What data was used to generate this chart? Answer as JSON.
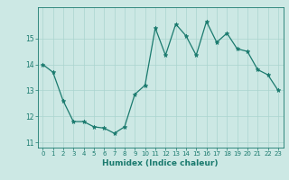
{
  "x": [
    0,
    1,
    2,
    3,
    4,
    5,
    6,
    7,
    8,
    9,
    10,
    11,
    12,
    13,
    14,
    15,
    16,
    17,
    18,
    19,
    20,
    21,
    22,
    23
  ],
  "y": [
    14.0,
    13.7,
    12.6,
    11.8,
    11.8,
    11.6,
    11.55,
    11.35,
    11.6,
    12.85,
    13.2,
    15.4,
    14.35,
    15.55,
    15.1,
    14.35,
    15.65,
    14.85,
    15.2,
    14.6,
    14.5,
    13.8,
    13.6,
    13.0
  ],
  "title": "",
  "xlabel": "Humidex (Indice chaleur)",
  "ylabel": "",
  "xlim": [
    -0.5,
    23.5
  ],
  "ylim": [
    10.8,
    16.2
  ],
  "yticks": [
    11,
    12,
    13,
    14,
    15
  ],
  "xticks": [
    0,
    1,
    2,
    3,
    4,
    5,
    6,
    7,
    8,
    9,
    10,
    11,
    12,
    13,
    14,
    15,
    16,
    17,
    18,
    19,
    20,
    21,
    22,
    23
  ],
  "line_color": "#1a7a6e",
  "marker_color": "#1a7a6e",
  "bg_color": "#cce8e4",
  "grid_color": "#aad4cf",
  "axis_color": "#1a7a6e",
  "tick_color": "#1a7a6e",
  "label_color": "#1a7a6e"
}
